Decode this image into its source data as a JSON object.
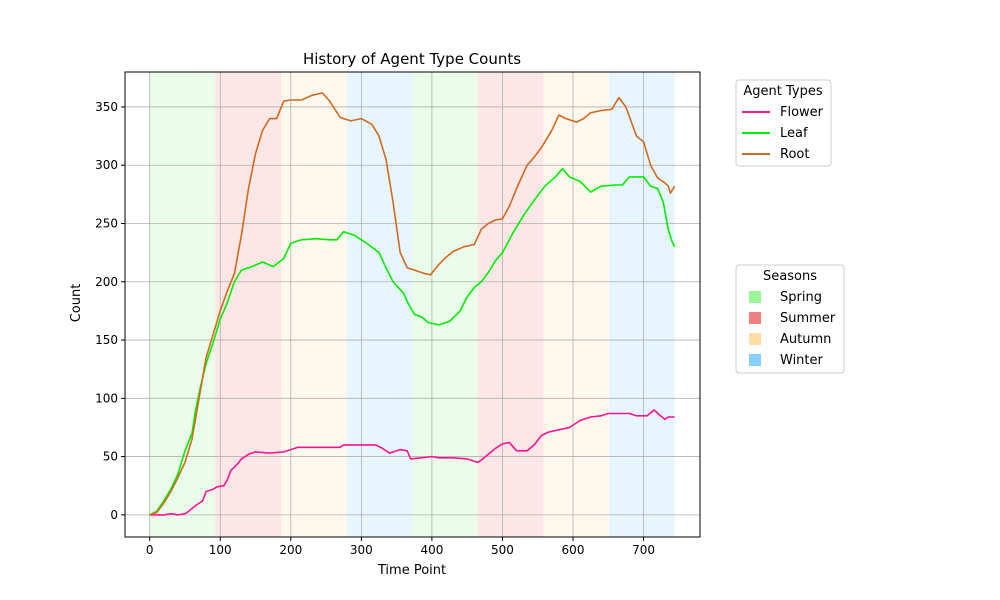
{
  "chart_data": {
    "type": "line",
    "title": "History of Agent Type Counts",
    "xlabel": "Time Point",
    "ylabel": "Count",
    "xlim": [
      -35,
      780
    ],
    "ylim": [
      -19,
      380
    ],
    "xticks": [
      0,
      100,
      200,
      300,
      400,
      500,
      600,
      700
    ],
    "yticks": [
      0,
      50,
      100,
      150,
      200,
      250,
      300,
      350
    ],
    "grid": true,
    "legend_agents": {
      "title": "Agent Types",
      "placement": "outside-right-top"
    },
    "legend_seasons": {
      "title": "Seasons",
      "placement": "outside-right-middle",
      "entries": [
        {
          "name": "Spring",
          "color": "#98f598"
        },
        {
          "name": "Summer",
          "color": "#f08080"
        },
        {
          "name": "Autumn",
          "color": "#fddca6"
        },
        {
          "name": "Winter",
          "color": "#87cefa"
        }
      ]
    },
    "season_bands": [
      {
        "season": "Spring",
        "start": 0,
        "end": 93
      },
      {
        "season": "Summer",
        "start": 93,
        "end": 186
      },
      {
        "season": "Autumn",
        "start": 186,
        "end": 279
      },
      {
        "season": "Winter",
        "start": 279,
        "end": 372
      },
      {
        "season": "Spring",
        "start": 372,
        "end": 465
      },
      {
        "season": "Summer",
        "start": 465,
        "end": 558
      },
      {
        "season": "Autumn",
        "start": 558,
        "end": 651
      },
      {
        "season": "Winter",
        "start": 651,
        "end": 744
      }
    ],
    "series": [
      {
        "name": "Flower",
        "color": "#ff1493",
        "points": [
          [
            0,
            0
          ],
          [
            20,
            0
          ],
          [
            30,
            1
          ],
          [
            40,
            0
          ],
          [
            50,
            1
          ],
          [
            55,
            3
          ],
          [
            65,
            8
          ],
          [
            75,
            12
          ],
          [
            80,
            20
          ],
          [
            90,
            22
          ],
          [
            95,
            24
          ],
          [
            105,
            25
          ],
          [
            110,
            30
          ],
          [
            115,
            38
          ],
          [
            125,
            44
          ],
          [
            130,
            48
          ],
          [
            140,
            52
          ],
          [
            150,
            54
          ],
          [
            170,
            53
          ],
          [
            190,
            54
          ],
          [
            200,
            56
          ],
          [
            210,
            58
          ],
          [
            250,
            58
          ],
          [
            270,
            58
          ],
          [
            275,
            60
          ],
          [
            300,
            60
          ],
          [
            320,
            60
          ],
          [
            330,
            57
          ],
          [
            340,
            53
          ],
          [
            355,
            56
          ],
          [
            365,
            55
          ],
          [
            370,
            48
          ],
          [
            385,
            49
          ],
          [
            400,
            50
          ],
          [
            410,
            49
          ],
          [
            430,
            49
          ],
          [
            450,
            48
          ],
          [
            460,
            46
          ],
          [
            465,
            45
          ],
          [
            470,
            47
          ],
          [
            480,
            52
          ],
          [
            490,
            57
          ],
          [
            500,
            61
          ],
          [
            510,
            62
          ],
          [
            520,
            55
          ],
          [
            535,
            55
          ],
          [
            545,
            60
          ],
          [
            555,
            68
          ],
          [
            565,
            71
          ],
          [
            580,
            73
          ],
          [
            595,
            75
          ],
          [
            610,
            81
          ],
          [
            625,
            84
          ],
          [
            640,
            85
          ],
          [
            650,
            87
          ],
          [
            665,
            87
          ],
          [
            680,
            87
          ],
          [
            690,
            85
          ],
          [
            700,
            85
          ],
          [
            705,
            85
          ],
          [
            715,
            90
          ],
          [
            722,
            86
          ],
          [
            730,
            82
          ],
          [
            735,
            84
          ],
          [
            744,
            84
          ]
        ]
      },
      {
        "name": "Leaf",
        "color": "#00ee00",
        "points": [
          [
            0,
            0
          ],
          [
            10,
            3
          ],
          [
            20,
            12
          ],
          [
            30,
            22
          ],
          [
            40,
            35
          ],
          [
            50,
            55
          ],
          [
            60,
            70
          ],
          [
            65,
            90
          ],
          [
            72,
            110
          ],
          [
            80,
            130
          ],
          [
            90,
            148
          ],
          [
            100,
            168
          ],
          [
            110,
            182
          ],
          [
            120,
            200
          ],
          [
            130,
            210
          ],
          [
            145,
            213
          ],
          [
            160,
            217
          ],
          [
            175,
            213
          ],
          [
            190,
            220
          ],
          [
            200,
            233
          ],
          [
            215,
            236
          ],
          [
            235,
            237
          ],
          [
            255,
            236
          ],
          [
            265,
            236
          ],
          [
            275,
            243
          ],
          [
            290,
            240
          ],
          [
            310,
            232
          ],
          [
            325,
            225
          ],
          [
            335,
            212
          ],
          [
            345,
            200
          ],
          [
            360,
            190
          ],
          [
            365,
            183
          ],
          [
            375,
            172
          ],
          [
            385,
            170
          ],
          [
            395,
            165
          ],
          [
            410,
            163
          ],
          [
            425,
            166
          ],
          [
            440,
            175
          ],
          [
            450,
            187
          ],
          [
            460,
            195
          ],
          [
            470,
            200
          ],
          [
            480,
            208
          ],
          [
            490,
            218
          ],
          [
            500,
            225
          ],
          [
            515,
            242
          ],
          [
            530,
            257
          ],
          [
            545,
            270
          ],
          [
            560,
            282
          ],
          [
            575,
            290
          ],
          [
            585,
            297
          ],
          [
            595,
            290
          ],
          [
            610,
            286
          ],
          [
            625,
            277
          ],
          [
            640,
            282
          ],
          [
            660,
            283
          ],
          [
            670,
            283
          ],
          [
            680,
            290
          ],
          [
            695,
            290
          ],
          [
            700,
            290
          ],
          [
            710,
            282
          ],
          [
            720,
            280
          ],
          [
            728,
            268
          ],
          [
            735,
            245
          ],
          [
            740,
            235
          ],
          [
            744,
            230
          ]
        ]
      },
      {
        "name": "Root",
        "color": "#d2691e",
        "points": [
          [
            0,
            0
          ],
          [
            10,
            2
          ],
          [
            20,
            10
          ],
          [
            30,
            20
          ],
          [
            40,
            32
          ],
          [
            50,
            45
          ],
          [
            60,
            65
          ],
          [
            70,
            100
          ],
          [
            80,
            135
          ],
          [
            90,
            155
          ],
          [
            100,
            175
          ],
          [
            110,
            192
          ],
          [
            120,
            207
          ],
          [
            130,
            240
          ],
          [
            140,
            280
          ],
          [
            150,
            310
          ],
          [
            160,
            330
          ],
          [
            170,
            340
          ],
          [
            180,
            340
          ],
          [
            190,
            355
          ],
          [
            200,
            356
          ],
          [
            215,
            356
          ],
          [
            230,
            360
          ],
          [
            245,
            362
          ],
          [
            255,
            355
          ],
          [
            270,
            341
          ],
          [
            285,
            338
          ],
          [
            300,
            340
          ],
          [
            315,
            335
          ],
          [
            325,
            325
          ],
          [
            335,
            305
          ],
          [
            345,
            268
          ],
          [
            355,
            225
          ],
          [
            365,
            212
          ],
          [
            380,
            209
          ],
          [
            390,
            207
          ],
          [
            398,
            206
          ],
          [
            410,
            215
          ],
          [
            420,
            221
          ],
          [
            430,
            226
          ],
          [
            445,
            230
          ],
          [
            460,
            232
          ],
          [
            470,
            245
          ],
          [
            480,
            250
          ],
          [
            490,
            253
          ],
          [
            500,
            254
          ],
          [
            510,
            265
          ],
          [
            520,
            280
          ],
          [
            535,
            300
          ],
          [
            545,
            307
          ],
          [
            555,
            315
          ],
          [
            570,
            330
          ],
          [
            580,
            343
          ],
          [
            590,
            340
          ],
          [
            605,
            337
          ],
          [
            615,
            340
          ],
          [
            625,
            345
          ],
          [
            640,
            347
          ],
          [
            655,
            348
          ],
          [
            665,
            358
          ],
          [
            675,
            350
          ],
          [
            690,
            325
          ],
          [
            700,
            320
          ],
          [
            710,
            300
          ],
          [
            720,
            289
          ],
          [
            730,
            285
          ],
          [
            735,
            282
          ],
          [
            738,
            276
          ],
          [
            744,
            282
          ]
        ]
      }
    ]
  }
}
